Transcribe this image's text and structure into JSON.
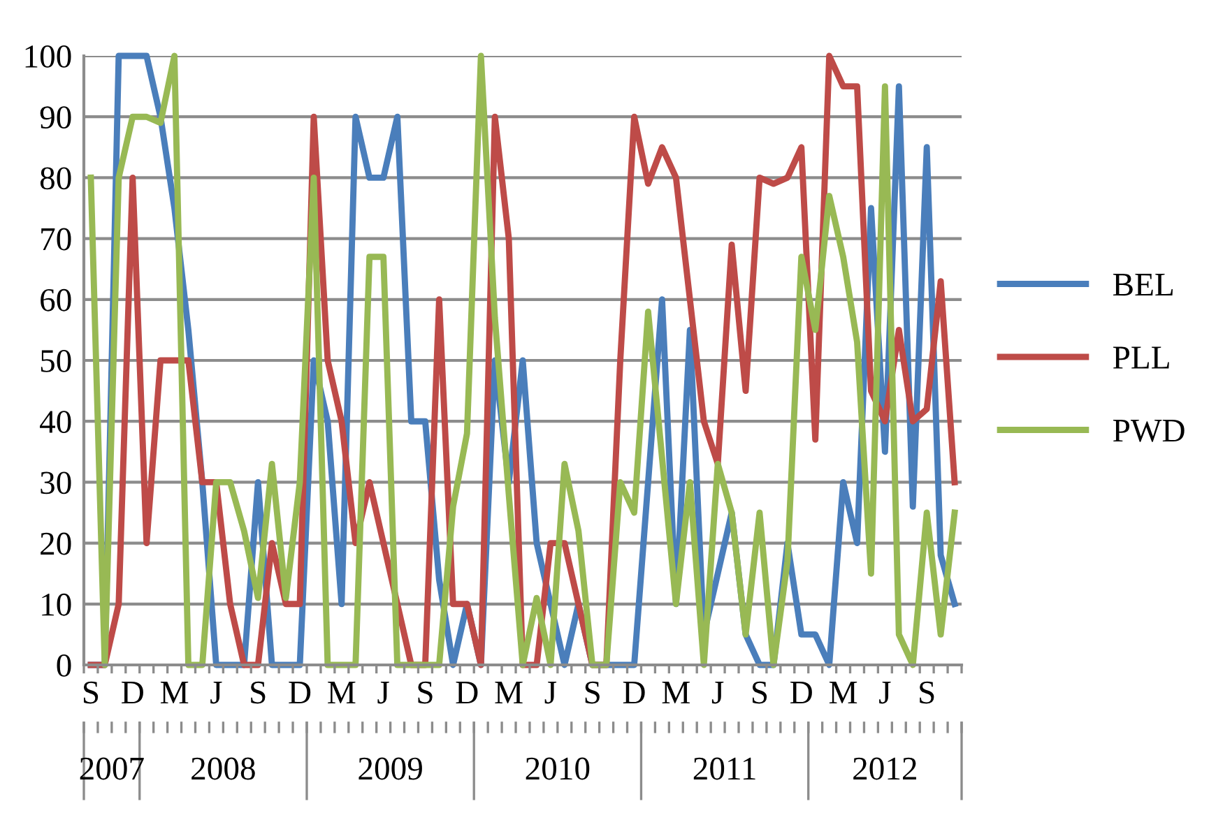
{
  "chart_data": {
    "type": "line",
    "categories": [
      "S",
      null,
      null,
      "D",
      null,
      null,
      "M",
      null,
      null,
      "J",
      null,
      null,
      "S",
      null,
      null,
      "D",
      null,
      null,
      "M",
      null,
      null,
      "J",
      null,
      null,
      "S",
      null,
      null,
      "D",
      null,
      null,
      "M",
      null,
      null,
      "J",
      null,
      null,
      "S",
      null,
      null,
      "D",
      null,
      null,
      "M",
      null,
      null,
      "J",
      null,
      null,
      "S",
      null,
      null,
      "D",
      null,
      null,
      "M",
      null,
      null,
      "J",
      null,
      null,
      "S",
      null,
      null
    ],
    "series": [
      {
        "name": "BEL",
        "color": "#4a7ebb",
        "values": [
          0,
          0,
          100,
          100,
          100,
          90,
          75,
          55,
          30,
          0,
          0,
          0,
          30,
          0,
          0,
          0,
          50,
          40,
          10,
          90,
          80,
          80,
          90,
          40,
          40,
          14,
          0,
          10,
          0,
          50,
          30,
          50,
          20,
          10,
          0,
          10,
          0,
          0,
          0,
          0,
          30,
          60,
          10,
          55,
          5,
          15,
          25,
          5,
          0,
          0,
          20,
          5,
          5,
          0,
          30,
          20,
          75,
          35,
          95,
          26,
          85,
          18,
          10
        ]
      },
      {
        "name": "PLL",
        "color": "#be4b48",
        "values": [
          0,
          0,
          10,
          80,
          20,
          50,
          50,
          50,
          30,
          30,
          10,
          0,
          0,
          20,
          10,
          10,
          90,
          50,
          40,
          20,
          30,
          20,
          10,
          0,
          0,
          60,
          10,
          10,
          0,
          90,
          70,
          0,
          0,
          20,
          20,
          10,
          0,
          0,
          50,
          90,
          79,
          85,
          80,
          60,
          40,
          33,
          69,
          45,
          80,
          79,
          80,
          85,
          37,
          100,
          95,
          95,
          45,
          40,
          55,
          40,
          42,
          63,
          30
        ]
      },
      {
        "name": "PWD",
        "color": "#98b954",
        "values": [
          80,
          0,
          80,
          90,
          90,
          89,
          100,
          0,
          0,
          30,
          30,
          22,
          11,
          33,
          11,
          30,
          80,
          0,
          0,
          0,
          67,
          67,
          0,
          0,
          0,
          0,
          26,
          38,
          100,
          57,
          28,
          0,
          11,
          0,
          33,
          22,
          0,
          0,
          30,
          25,
          58,
          34,
          10,
          30,
          0,
          33,
          25,
          5,
          25,
          0,
          17,
          67,
          55,
          77,
          67,
          53,
          15,
          95,
          5,
          0,
          25,
          5,
          25
        ]
      }
    ],
    "annotations": [
      "2007",
      "2008",
      "2009",
      "2010",
      "2011",
      "2012"
    ],
    "ylim": [
      0,
      100
    ],
    "yticks": [
      0,
      10,
      20,
      30,
      40,
      50,
      60,
      70,
      80,
      90,
      100
    ],
    "grid": "y",
    "legend": "right",
    "marker": "none",
    "line_style": "solid"
  }
}
